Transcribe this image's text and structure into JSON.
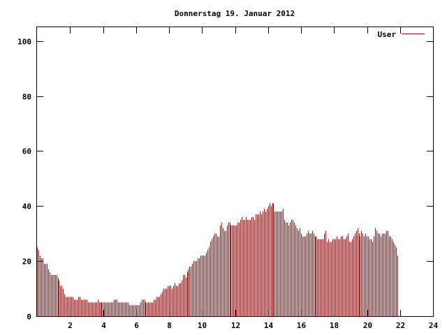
{
  "chart_data": {
    "type": "bar",
    "title": "Donnerstag 19. Januar 2012",
    "xlabel": "",
    "ylabel": "",
    "xlim": [
      0,
      24
    ],
    "ylim": [
      0,
      105
    ],
    "x_ticks": [
      "2",
      "4",
      "6",
      "8",
      "10",
      "12",
      "14",
      "16",
      "18",
      "20",
      "22",
      "24"
    ],
    "y_ticks": [
      "0",
      "20",
      "40",
      "60",
      "80",
      "100"
    ],
    "legend": "top-right",
    "grid": false,
    "series": [
      {
        "name": "User",
        "color": "#cc0000",
        "interval_hours": 0.0833,
        "values": [
          25,
          24,
          22,
          21,
          21,
          19,
          19,
          19,
          17,
          16,
          15,
          15,
          15,
          15,
          15,
          14,
          13,
          11,
          11,
          10,
          8,
          7,
          7,
          7,
          7,
          7,
          7,
          6,
          6,
          6,
          7,
          7,
          6,
          6,
          6,
          6,
          6,
          5,
          5,
          5,
          5,
          5,
          5,
          5,
          6,
          5,
          5,
          5,
          5,
          5,
          5,
          5,
          5,
          5,
          5,
          5,
          6,
          6,
          6,
          5,
          5,
          5,
          5,
          5,
          5,
          5,
          5,
          4,
          4,
          4,
          4,
          4,
          4,
          4,
          4,
          5,
          6,
          6,
          6,
          5,
          5,
          5,
          5,
          5,
          5,
          6,
          6,
          7,
          7,
          7,
          8,
          9,
          10,
          10,
          10,
          11,
          11,
          11,
          10,
          11,
          12,
          11,
          11,
          12,
          12,
          13,
          15,
          15,
          14,
          16,
          17,
          18,
          18,
          19,
          20,
          20,
          20,
          21,
          21,
          22,
          22,
          22,
          22,
          23,
          24,
          25,
          27,
          28,
          29,
          30,
          30,
          29,
          29,
          33,
          34,
          32,
          31,
          31,
          33,
          34,
          34,
          33,
          33,
          33,
          33,
          33,
          34,
          34,
          35,
          36,
          35,
          35,
          36,
          35,
          35,
          35,
          36,
          36,
          35,
          37,
          37,
          37,
          38,
          37,
          38,
          39,
          38,
          39,
          40,
          41,
          40,
          41,
          41,
          38,
          38,
          38,
          38,
          38,
          38,
          39,
          35,
          34,
          34,
          33,
          34,
          35,
          35,
          34,
          33,
          32,
          31,
          32,
          30,
          29,
          29,
          29,
          30,
          31,
          30,
          30,
          31,
          30,
          29,
          29,
          28,
          28,
          28,
          28,
          28,
          30,
          31,
          27,
          28,
          27,
          27,
          28,
          28,
          28,
          29,
          28,
          28,
          29,
          29,
          28,
          28,
          29,
          30,
          27,
          27,
          28,
          29,
          30,
          31,
          32,
          30,
          29,
          31,
          30,
          29,
          30,
          29,
          29,
          28,
          28,
          27,
          29,
          32,
          31,
          30,
          30,
          29,
          30,
          30,
          30,
          31,
          31,
          29,
          29,
          28,
          27,
          26,
          25,
          22
        ]
      }
    ]
  }
}
